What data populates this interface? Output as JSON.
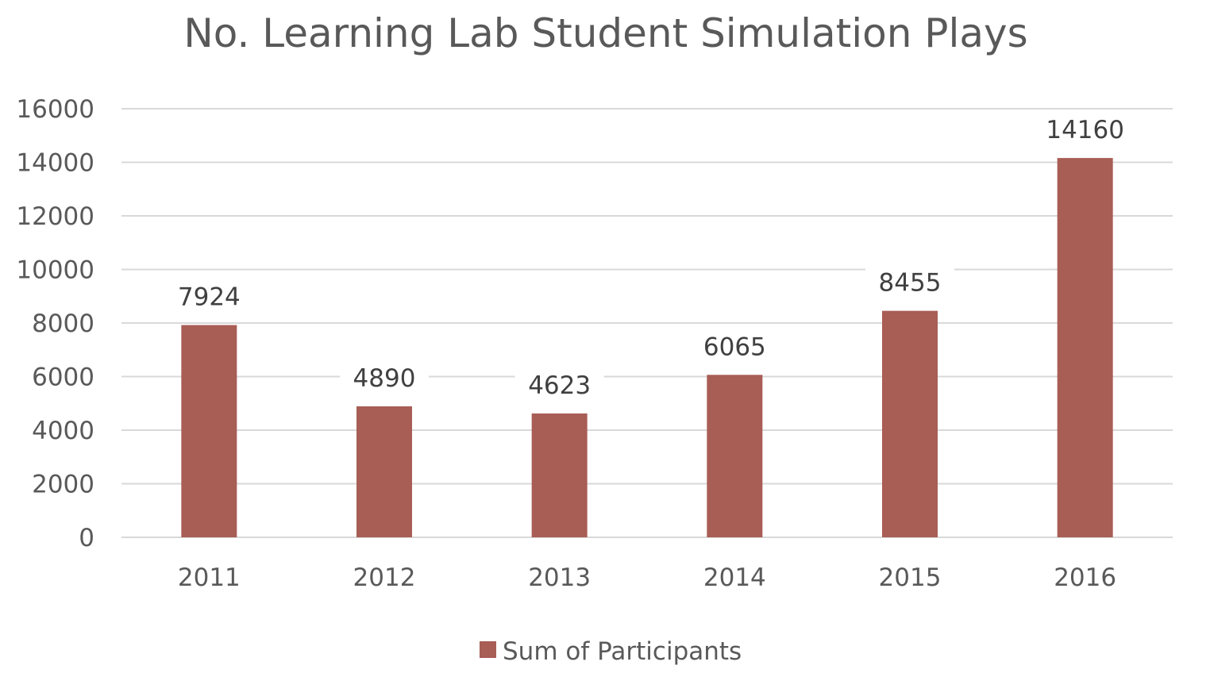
{
  "chart_data": {
    "type": "bar",
    "title": "No. Learning Lab Student Simulation Plays",
    "xlabel": "",
    "ylabel": "",
    "categories": [
      "2011",
      "2012",
      "2013",
      "2014",
      "2015",
      "2016"
    ],
    "series": [
      {
        "name": "Sum of Participants",
        "values": [
          7924,
          4890,
          4623,
          6065,
          8455,
          14160
        ],
        "color": "#a85d55"
      }
    ],
    "ylim": [
      0,
      16000
    ],
    "yticks": [
      "0",
      "2000",
      "4000",
      "6000",
      "8000",
      "10000",
      "12000",
      "14000",
      "16000"
    ],
    "data_labels": [
      "7924",
      "4890",
      "4623",
      "6065",
      "8455",
      "14160"
    ],
    "grid": true,
    "legend_position": "bottom",
    "colors": {
      "grid": "#d9d9d9",
      "text": "#595959",
      "label": "#404040"
    }
  }
}
